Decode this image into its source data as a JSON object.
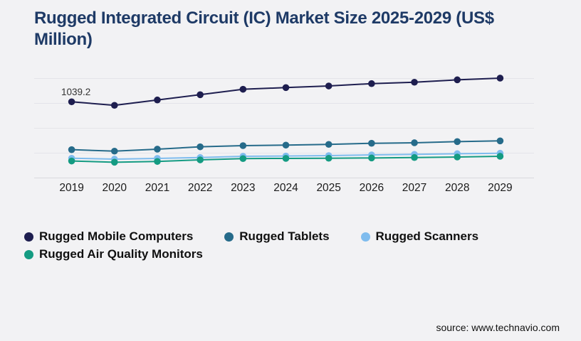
{
  "title": "Rugged Integrated Circuit (IC) Market Size 2025-2029 (US$ Million)",
  "source": "source: www.technavio.com",
  "colors": {
    "title": "#1e3a66",
    "background": "#f2f2f4",
    "gridline": "#e4e4e9",
    "axis_line": "#d9d9de"
  },
  "chart_data": {
    "type": "line",
    "title": "Rugged Integrated Circuit (IC) Market Size 2025-2029 (US$ Million)",
    "categories": [
      "2019",
      "2020",
      "2021",
      "2022",
      "2023",
      "2024",
      "2025",
      "2026",
      "2027",
      "2028",
      "2029"
    ],
    "series": [
      {
        "name": "Rugged Mobile Computers",
        "color": "#1e1e4f",
        "values": [
          1039.2,
          991,
          1064,
          1136,
          1210,
          1233,
          1255,
          1287,
          1306,
          1339,
          1362
        ]
      },
      {
        "name": "Rugged Tablets",
        "color": "#266b8a",
        "values": [
          386,
          366,
          393,
          425,
          441,
          448,
          458,
          473,
          480,
          496,
          506
        ]
      },
      {
        "name": "Rugged Scanners",
        "color": "#7fbcee",
        "values": [
          269,
          257,
          267,
          279,
          296,
          299,
          305,
          315,
          322,
          331,
          337
        ]
      },
      {
        "name": "Rugged Air Quality Monitors",
        "color": "#149b82",
        "values": [
          231,
          215,
          225,
          247,
          264,
          267,
          269,
          273,
          279,
          286,
          296
        ]
      }
    ],
    "data_label": {
      "series": "Rugged Mobile Computers",
      "category": "2019",
      "text": "1039.2"
    },
    "xlabel": "",
    "ylabel": "",
    "ylim": [
      0,
      1400
    ],
    "y_axis_labels_visible": false,
    "grid": true,
    "legend_position": "bottom"
  }
}
